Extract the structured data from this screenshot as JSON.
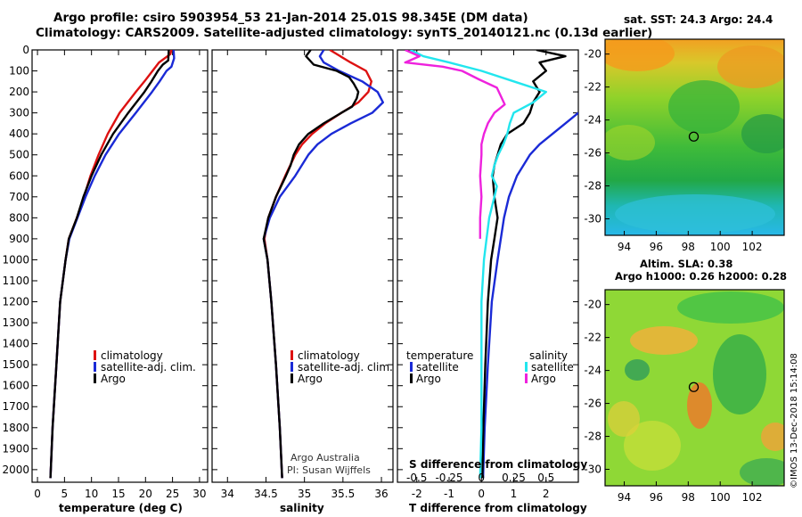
{
  "header": {
    "title_line1": "Argo profile: csiro 5903954_53 21-Jan-2014 25.01S 98.345E (DM data)",
    "title_line2": "Climatology: CARS2009. Satellite-adjusted climatology: synTS_20140121.nc (0.13d earlier)"
  },
  "depth_axis": {
    "ticks": [
      0,
      100,
      200,
      300,
      400,
      500,
      600,
      700,
      800,
      900,
      1000,
      1100,
      1200,
      1300,
      1400,
      1500,
      1600,
      1700,
      1800,
      1900,
      2000
    ],
    "range": [
      0,
      2060
    ]
  },
  "colors": {
    "climatology": "#dd1111",
    "satellite": "#1a2ad6",
    "argo": "#000000",
    "sat_salinity": "#22e6ee",
    "argo_salinity": "#ee22dd"
  },
  "chart_data": [
    {
      "type": "line",
      "name": "temperature",
      "xlabel": "temperature (deg C)",
      "xlim": [
        -1,
        31.5
      ],
      "xticks": [
        0,
        5,
        10,
        15,
        20,
        25,
        30
      ],
      "xtick_labels": [
        "0",
        "5",
        "10",
        "15",
        "20",
        "25",
        "30"
      ],
      "legend": [
        "climatology",
        "satellite-adj. clim.",
        "Argo"
      ],
      "series": [
        {
          "name": "climatology",
          "color": "#dd1111",
          "depth": [
            0,
            20,
            60,
            100,
            150,
            200,
            300,
            400,
            500,
            600,
            700,
            800,
            900,
            1000,
            1200,
            1500,
            1800,
            2040
          ],
          "values": [
            24.8,
            24.6,
            22.5,
            21.3,
            19.8,
            18.2,
            15.2,
            13.0,
            11.3,
            9.8,
            8.6,
            7.3,
            5.8,
            5.2,
            4.2,
            3.5,
            2.8,
            2.4
          ]
        },
        {
          "name": "satellite-adj. clim.",
          "color": "#1a2ad6",
          "depth": [
            0,
            40,
            80,
            100,
            150,
            200,
            300,
            400,
            500,
            600,
            700,
            800,
            900,
            1000,
            1200,
            1500,
            1800,
            2040
          ],
          "values": [
            25.2,
            25.3,
            24.8,
            23.9,
            22.6,
            21.2,
            18.2,
            15.1,
            12.6,
            10.6,
            8.9,
            7.4,
            5.9,
            5.2,
            4.2,
            3.5,
            2.8,
            2.4
          ]
        },
        {
          "name": "Argo",
          "color": "#000000",
          "depth": [
            0,
            50,
            70,
            100,
            150,
            200,
            300,
            400,
            500,
            600,
            700,
            800,
            900,
            1000,
            1200,
            1500,
            1800,
            2040
          ],
          "values": [
            24.3,
            24.2,
            23.2,
            22.3,
            21.1,
            19.8,
            16.8,
            14.0,
            11.8,
            10.0,
            8.5,
            7.3,
            5.8,
            5.2,
            4.2,
            3.5,
            2.8,
            2.4
          ]
        }
      ],
      "annotations": []
    },
    {
      "type": "line",
      "name": "salinity",
      "xlabel": "salinity",
      "xlim": [
        33.8,
        36.15
      ],
      "xticks": [
        34,
        34.5,
        35,
        35.5,
        36
      ],
      "xtick_labels": [
        "34",
        "34.5",
        "35",
        "35.5",
        "36"
      ],
      "legend": [
        "climatology",
        "satellite-adj. clim.",
        "Argo"
      ],
      "series": [
        {
          "name": "climatology",
          "color": "#dd1111",
          "depth": [
            0,
            60,
            100,
            150,
            200,
            250,
            300,
            350,
            400,
            450,
            500,
            600,
            700,
            800,
            900,
            1000,
            1200,
            1500,
            1800,
            2040
          ],
          "values": [
            35.33,
            35.6,
            35.8,
            35.87,
            35.83,
            35.7,
            35.48,
            35.27,
            35.1,
            34.97,
            34.88,
            34.75,
            34.63,
            34.53,
            34.48,
            34.52,
            34.57,
            34.63,
            34.68,
            34.71
          ]
        },
        {
          "name": "satellite-adj. clim.",
          "color": "#1a2ad6",
          "depth": [
            0,
            30,
            60,
            100,
            150,
            200,
            250,
            300,
            350,
            400,
            450,
            500,
            600,
            700,
            800,
            900,
            1000,
            1200,
            1500,
            1800,
            2040
          ],
          "values": [
            35.25,
            35.2,
            35.25,
            35.45,
            35.75,
            35.95,
            36.02,
            35.88,
            35.6,
            35.35,
            35.17,
            35.05,
            34.88,
            34.68,
            34.55,
            34.47,
            34.52,
            34.57,
            34.63,
            34.68,
            34.71
          ]
        },
        {
          "name": "Argo",
          "color": "#000000",
          "depth": [
            0,
            30,
            70,
            100,
            130,
            160,
            200,
            230,
            270,
            300,
            350,
            400,
            450,
            500,
            550,
            600,
            700,
            800,
            900,
            1000,
            1200,
            1500,
            1800,
            2040
          ],
          "values": [
            35.08,
            35.02,
            35.12,
            35.42,
            35.58,
            35.64,
            35.7,
            35.68,
            35.62,
            35.48,
            35.25,
            35.05,
            34.93,
            34.86,
            34.82,
            34.76,
            34.63,
            34.53,
            34.47,
            34.52,
            34.57,
            34.63,
            34.68,
            34.71
          ]
        }
      ],
      "annotations": [
        "Argo Australia",
        "PI: Susan Wijffels"
      ]
    },
    {
      "type": "line",
      "name": "difference",
      "xlabel": "T difference from climatology",
      "xlabel_top": "S difference from climatology",
      "xlim": [
        -2.6,
        3.0
      ],
      "xticks": [
        -2,
        -1,
        0,
        1,
        2
      ],
      "xtick_labels": [
        "-2",
        "-1",
        "0",
        "1",
        "2"
      ],
      "s_ticks": [
        -0.5,
        -0.25,
        0,
        0.25,
        0.5
      ],
      "s_tick_labels": [
        "-0.5",
        "-0.25",
        "0",
        "0.25",
        "0.5"
      ],
      "legend_temperature": {
        "title": "temperature",
        "items": [
          "satellite",
          "Argo"
        ]
      },
      "legend_salinity": {
        "title": "salinity",
        "items": [
          "satellite",
          "Argo"
        ]
      },
      "series": [
        {
          "name": "T satellite",
          "color": "#1a2ad6",
          "depth": [
            300,
            350,
            400,
            450,
            500,
            600,
            700,
            800,
            900,
            1000,
            1200,
            1500,
            1800,
            2040
          ],
          "values": [
            3.0,
            2.6,
            2.2,
            1.8,
            1.5,
            1.1,
            0.85,
            0.7,
            0.6,
            0.5,
            0.32,
            0.2,
            0.1,
            0.05
          ]
        },
        {
          "name": "T Argo",
          "color": "#000000",
          "depth": [
            0,
            30,
            60,
            100,
            150,
            200,
            250,
            300,
            350,
            400,
            450,
            500,
            550,
            600,
            700,
            800,
            900,
            1000,
            1200,
            1500,
            1800,
            2040
          ],
          "values": [
            1.7,
            2.6,
            1.8,
            2.0,
            1.6,
            1.8,
            1.6,
            1.5,
            1.3,
            0.8,
            0.6,
            0.5,
            0.4,
            0.35,
            0.4,
            0.5,
            0.4,
            0.3,
            0.2,
            0.12,
            0.06,
            0.03
          ]
        },
        {
          "name": "S satellite",
          "color": "#22e6ee",
          "depth": [
            0,
            30,
            60,
            100,
            150,
            200,
            250,
            300,
            350,
            400,
            450,
            500,
            550,
            600,
            650,
            700,
            800,
            900,
            1000,
            1200,
            1500,
            1800,
            2040
          ],
          "values": [
            -0.55,
            -0.45,
            -0.25,
            0.0,
            0.25,
            0.5,
            0.4,
            0.25,
            0.22,
            0.2,
            0.17,
            0.13,
            0.1,
            0.08,
            0.12,
            0.1,
            0.06,
            0.04,
            0.02,
            0.0,
            0.0,
            0.0,
            -0.01
          ]
        },
        {
          "name": "S Argo",
          "color": "#ee22dd",
          "depth": [
            0,
            30,
            60,
            80,
            100,
            140,
            180,
            220,
            260,
            300,
            350,
            400,
            450,
            500,
            600,
            700,
            800,
            900
          ],
          "values": [
            -0.59,
            -0.48,
            -0.59,
            -0.3,
            -0.15,
            -0.02,
            0.12,
            0.15,
            0.18,
            0.1,
            0.05,
            0.02,
            0.0,
            0.0,
            -0.01,
            0.0,
            -0.01,
            -0.01
          ]
        }
      ],
      "annotations": []
    }
  ],
  "maps": {
    "sst": {
      "title": "sat. SST: 24.3 Argo: 24.4",
      "yticks": [
        "-20",
        "-22",
        "-24",
        "-26",
        "-28",
        "-30"
      ],
      "xticks": [
        "94",
        "96",
        "98",
        "100",
        "102"
      ],
      "argo_position": {
        "lon": 98.345,
        "lat": -25.01
      }
    },
    "sla": {
      "title_line1": "Altim. SLA: 0.38",
      "title_line2": "Argo h1000: 0.26 h2000: 0.28",
      "yticks": [
        "-20",
        "-22",
        "-24",
        "-26",
        "-28",
        "-30"
      ],
      "xticks": [
        "94",
        "96",
        "98",
        "100",
        "102"
      ],
      "argo_position": {
        "lon": 98.345,
        "lat": -25.01
      }
    }
  },
  "footer": {
    "credit": "©IMOS 13-Dec-2018 15:14:08"
  }
}
